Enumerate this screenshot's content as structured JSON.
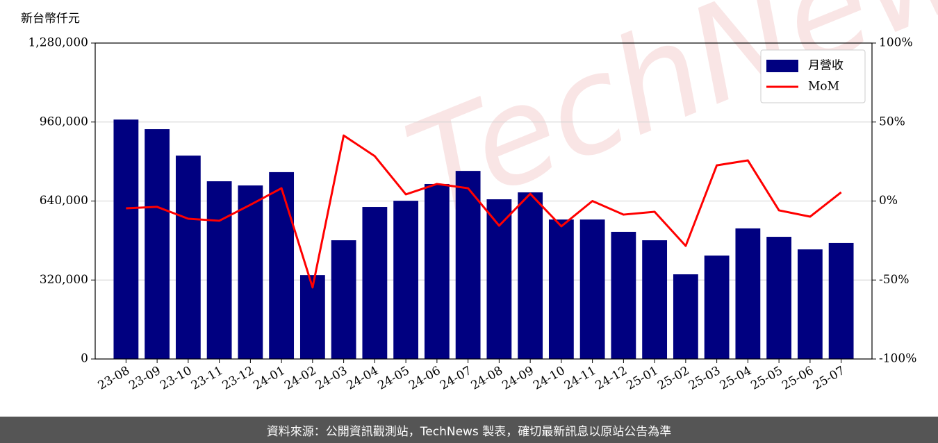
{
  "chart_data": {
    "type": "bar",
    "y_label": "新台幣仟元",
    "categories": [
      "23-08",
      "23-09",
      "23-10",
      "23-11",
      "23-12",
      "24-01",
      "24-02",
      "24-03",
      "24-04",
      "24-05",
      "24-06",
      "24-07",
      "24-08",
      "24-09",
      "24-10",
      "24-11",
      "24-12",
      "25-01",
      "25-02",
      "25-03",
      "25-04",
      "25-05",
      "25-06",
      "25-07"
    ],
    "series": [
      {
        "name": "月營收",
        "type": "bar",
        "color": "#000080",
        "values": [
          970000,
          931000,
          824000,
          720000,
          703000,
          757000,
          340000,
          481000,
          616000,
          641000,
          709000,
          762000,
          647000,
          675000,
          565000,
          565000,
          515000,
          481000,
          343000,
          419000,
          529000,
          495000,
          444000,
          470000
        ]
      },
      {
        "name": "MoM",
        "type": "line",
        "color": "#ff0000",
        "axis": "y2",
        "values": [
          -4.6,
          -3.7,
          -11.2,
          -12.5,
          -2.4,
          8.1,
          -54.7,
          41.5,
          28.4,
          4.2,
          10.8,
          8.1,
          -15.6,
          4.6,
          -16.0,
          0,
          -8.6,
          -6.8,
          -28.4,
          22.6,
          25.7,
          -5.9,
          -9.9,
          5.5
        ]
      }
    ],
    "ylim": [
      0,
      1280000
    ],
    "yticks": [
      0,
      {
        "value": 320000,
        "label": "320,000"
      },
      {
        "value": 640000,
        "label": "640,000"
      },
      {
        "value": 960000,
        "label": "960,000"
      },
      {
        "value": 1280000,
        "label": "1,280,000"
      }
    ],
    "y2lim": [
      -100,
      100
    ],
    "y2ticks": [
      {
        "value": -100,
        "label": "-100%"
      },
      {
        "value": -50,
        "label": "-50%"
      },
      {
        "value": 0,
        "label": "0%"
      },
      {
        "value": 50,
        "label": "50%"
      },
      {
        "value": 100,
        "label": "100%"
      }
    ],
    "grid": true,
    "legend": "upper right"
  },
  "watermark": "TechNews",
  "footer": "資料來源：公開資訊觀測站，TechNews 製表，確切最新訊息以原站公告為準"
}
